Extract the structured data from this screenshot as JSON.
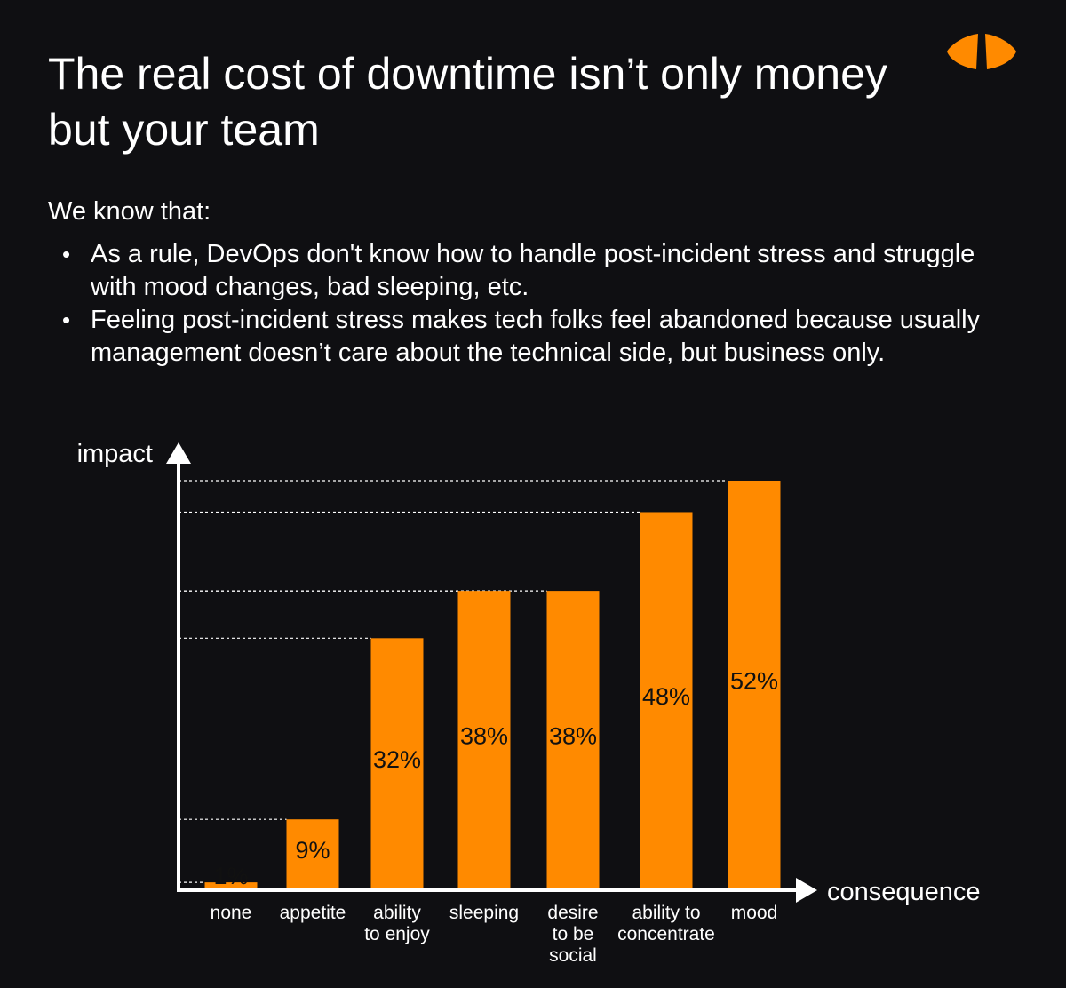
{
  "title": "The real cost of downtime isn’t only money but your team",
  "intro": "We know that:",
  "bullets": [
    "As a rule, DevOps don't know how to handle post-incident stress and struggle with mood changes, bad sleeping, etc.",
    "Feeling post-incident stress makes tech folks feel abandoned because usually management doesn’t care about the technical side, but business only."
  ],
  "bullet_glyph": "•",
  "colors": {
    "background": "#0f0f12",
    "bar": "#ff8a00",
    "text": "#ffffff",
    "bar_text": "#111111"
  },
  "logo_icon": "orange-split-eye-logo",
  "chart_data": {
    "type": "bar",
    "title": "",
    "xlabel": "consequence",
    "ylabel": "impact",
    "ylim": [
      0,
      52
    ],
    "grid": false,
    "reference_lines": "dashed lines from y-axis to each bar top",
    "categories": [
      [
        "none"
      ],
      [
        "appetite"
      ],
      [
        "ability",
        "to enjoy"
      ],
      [
        "sleeping"
      ],
      [
        "desire",
        "to be",
        "social"
      ],
      [
        "ability to",
        "concentrate"
      ],
      [
        "mood"
      ]
    ],
    "values": [
      1,
      9,
      32,
      38,
      38,
      48,
      52
    ],
    "data_labels": [
      "1%",
      "9%",
      "32%",
      "38%",
      "38%",
      "48%",
      "52%"
    ]
  }
}
